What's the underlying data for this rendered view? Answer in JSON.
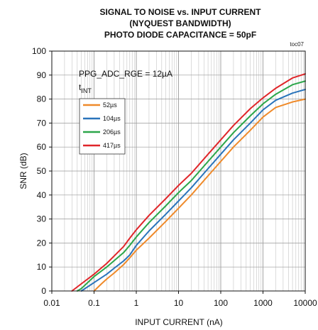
{
  "chart_data": {
    "type": "line",
    "title": [
      "SIGNAL TO NOISE vs. INPUT CURRENT",
      "(NYQUEST BANDWIDTH)",
      "PHOTO DIODE CAPACITANCE  = 50pF"
    ],
    "figure_code": "toc07",
    "xlabel": "INPUT CURRENT (nA)",
    "ylabel": "SNR (dB)",
    "x_scale": "log",
    "xlim": [
      0.01,
      10000
    ],
    "ylim": [
      0,
      100
    ],
    "x_ticks": [
      {
        "value": 0.01,
        "label": "0.01"
      },
      {
        "value": 0.1,
        "label": "0.1"
      },
      {
        "value": 1,
        "label": "1"
      },
      {
        "value": 10,
        "label": "10"
      },
      {
        "value": 100,
        "label": "100"
      },
      {
        "value": 1000,
        "label": "1000"
      },
      {
        "value": 10000,
        "label": "10000"
      }
    ],
    "y_ticks": [
      0,
      10,
      20,
      30,
      40,
      50,
      60,
      70,
      80,
      90,
      100
    ],
    "grid": true,
    "annotation": "PPG_ADC_RGE = 12µA",
    "legend_title": {
      "main": "t",
      "sub": "INT"
    },
    "legend_placement": "top-left",
    "series": [
      {
        "name": "52µs",
        "color": "#ef8a2a",
        "x": [
          0.1,
          0.15,
          0.2,
          0.3,
          0.5,
          0.7,
          1,
          2,
          5,
          10,
          20,
          50,
          100,
          200,
          500,
          1000,
          2000,
          5000,
          10000
        ],
        "y": [
          0,
          3,
          5,
          7.5,
          11,
          13.8,
          17,
          22,
          29,
          34.5,
          40,
          48,
          54,
          60,
          67,
          72.5,
          76.5,
          78.8,
          80
        ]
      },
      {
        "name": "104µs",
        "color": "#2a74bb",
        "x": [
          0.05,
          0.1,
          0.2,
          0.3,
          0.5,
          0.7,
          1,
          2,
          5,
          10,
          20,
          50,
          100,
          200,
          500,
          1000,
          2000,
          5000,
          10000
        ],
        "y": [
          0,
          3.5,
          7,
          9.5,
          12.5,
          15,
          19,
          25,
          32,
          37.5,
          43,
          51,
          57,
          63,
          70,
          75.5,
          79.5,
          82.5,
          84
        ]
      },
      {
        "name": "206µs",
        "color": "#2ca64a",
        "x": [
          0.04,
          0.05,
          0.1,
          0.2,
          0.5,
          0.7,
          1,
          2,
          5,
          10,
          20,
          50,
          100,
          200,
          500,
          1000,
          2000,
          5000,
          10000
        ],
        "y": [
          0,
          1,
          6,
          10,
          16,
          19,
          22.5,
          28.5,
          35.5,
          41,
          46,
          54,
          60,
          66,
          73,
          78,
          82,
          86,
          87.5
        ]
      },
      {
        "name": "417µs",
        "color": "#e0262a",
        "x": [
          0.03,
          0.05,
          0.1,
          0.2,
          0.5,
          0.7,
          1,
          2,
          5,
          10,
          20,
          50,
          100,
          200,
          500,
          1000,
          2000,
          5000,
          10000
        ],
        "y": [
          0,
          3,
          7,
          11.5,
          18.5,
          22,
          25.5,
          31.5,
          38.5,
          44,
          49,
          57,
          63,
          69,
          76,
          80.5,
          84.5,
          88.8,
          90.5
        ]
      }
    ]
  }
}
